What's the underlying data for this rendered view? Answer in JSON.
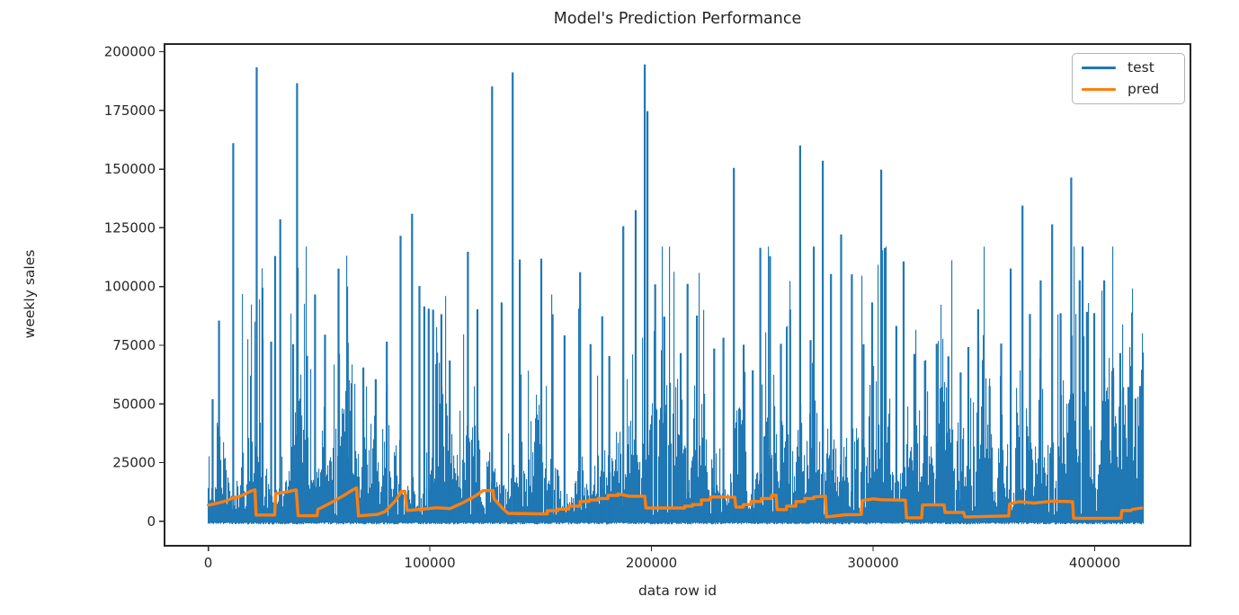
{
  "figure": {
    "title": "Model's Prediction Performance"
  },
  "chart_data": {
    "type": "line",
    "title": "Model's Prediction Performance",
    "xlabel": "data row id",
    "ylabel": "weekly sales",
    "xlim": [
      -19700,
      443200
    ],
    "ylim": [
      -10400,
      203250
    ],
    "grid": false,
    "background": "#ffffff",
    "axes_color": "#262626",
    "xticks": [
      {
        "value": 0,
        "label": "0"
      },
      {
        "value": 100000,
        "label": "100000"
      },
      {
        "value": 200000,
        "label": "200000"
      },
      {
        "value": 300000,
        "label": "300000"
      },
      {
        "value": 400000,
        "label": "400000"
      }
    ],
    "yticks": [
      {
        "value": 0,
        "label": "0"
      },
      {
        "value": 25000,
        "label": "25000"
      },
      {
        "value": 50000,
        "label": "50000"
      },
      {
        "value": 75000,
        "label": "75000"
      },
      {
        "value": 100000,
        "label": "100000"
      },
      {
        "value": 125000,
        "label": "125000"
      },
      {
        "value": 150000,
        "label": "150000"
      },
      {
        "value": 175000,
        "label": "175000"
      },
      {
        "value": 200000,
        "label": "200000"
      }
    ],
    "legend": {
      "position": "upper right",
      "entries": [
        {
          "label": "test",
          "color": "#1f77b4"
        },
        {
          "label": "pred",
          "color": "#ff7f0e"
        }
      ]
    },
    "series": [
      {
        "name": "test",
        "color": "#1f77b4",
        "style": "dense-noisy-spikes",
        "x_range": [
          0,
          422000
        ],
        "y_range": [
          -1300,
          194600
        ],
        "description": "~422000 noisy weekly-sales observations forming a dense blue texture from 0 up to 25000-90000 with tall isolated spikes",
        "noise": {
          "seed": 1337,
          "base_min": 3000,
          "base_amp": 66000,
          "spike_prob": 0.2,
          "streak_prob": 0.055,
          "cap": 117000
        },
        "major_peaks": [
          [
            2000,
            52000
          ],
          [
            4900,
            85500
          ],
          [
            11300,
            161000
          ],
          [
            21900,
            193400
          ],
          [
            24500,
            99500
          ],
          [
            28400,
            76500
          ],
          [
            30200,
            113000
          ],
          [
            32500,
            128600
          ],
          [
            38300,
            75500
          ],
          [
            40100,
            186600
          ],
          [
            44600,
            70500
          ],
          [
            48200,
            96600
          ],
          [
            52700,
            79500
          ],
          [
            58800,
            107600
          ],
          [
            63000,
            76000
          ],
          [
            70000,
            65500
          ],
          [
            75600,
            60500
          ],
          [
            80600,
            76500
          ],
          [
            86800,
            121600
          ],
          [
            92000,
            131000
          ],
          [
            95300,
            100200
          ],
          [
            97500,
            91500
          ],
          [
            99500,
            90600
          ],
          [
            101500,
            90100
          ],
          [
            105200,
            88200
          ],
          [
            109000,
            68500
          ],
          [
            117200,
            114800
          ],
          [
            121500,
            90300
          ],
          [
            128100,
            185200
          ],
          [
            132400,
            93200
          ],
          [
            137400,
            191200
          ],
          [
            140600,
            111500
          ],
          [
            150300,
            111800
          ],
          [
            155400,
            88200
          ],
          [
            160800,
            79200
          ],
          [
            167800,
            106100
          ],
          [
            172500,
            75500
          ],
          [
            177800,
            87300
          ],
          [
            181000,
            70400
          ],
          [
            187300,
            125700
          ],
          [
            192900,
            132500
          ],
          [
            197000,
            194600
          ],
          [
            198200,
            174700
          ],
          [
            201700,
            100900
          ],
          [
            205800,
            87200
          ],
          [
            213200,
            71600
          ],
          [
            216300,
            101100
          ],
          [
            220500,
            87600
          ],
          [
            228300,
            73600
          ],
          [
            232500,
            78200
          ],
          [
            237200,
            150500
          ],
          [
            241600,
            75200
          ],
          [
            245700,
            64300
          ],
          [
            249100,
            116500
          ],
          [
            253500,
            112900
          ],
          [
            258400,
            75600
          ],
          [
            262600,
            90200
          ],
          [
            267100,
            160100
          ],
          [
            271800,
            77200
          ],
          [
            277300,
            153600
          ],
          [
            281000,
            105300
          ],
          [
            285600,
            122200
          ],
          [
            290400,
            105200
          ],
          [
            295700,
            75400
          ],
          [
            299600,
            93200
          ],
          [
            303700,
            149800
          ],
          [
            305300,
            116400
          ],
          [
            310500,
            83200
          ],
          [
            313800,
            110700
          ],
          [
            318600,
            71300
          ],
          [
            323400,
            68400
          ],
          [
            328700,
            75600
          ],
          [
            334000,
            70300
          ],
          [
            339500,
            63400
          ],
          [
            343000,
            74200
          ],
          [
            347400,
            90300
          ],
          [
            352600,
            57600
          ],
          [
            357800,
            75700
          ],
          [
            362100,
            107700
          ],
          [
            367400,
            134500
          ],
          [
            370800,
            88300
          ],
          [
            375600,
            102600
          ],
          [
            380800,
            126500
          ],
          [
            384600,
            88600
          ],
          [
            389400,
            146400
          ],
          [
            393200,
            102700
          ],
          [
            396500,
            89200
          ],
          [
            399800,
            88700
          ],
          [
            404300,
            102600
          ],
          [
            408300,
            65300
          ],
          [
            411500,
            71600
          ],
          [
            415200,
            57200
          ],
          [
            418400,
            52300
          ],
          [
            420500,
            57600
          ]
        ]
      },
      {
        "name": "pred",
        "color": "#ff7f0e",
        "style": "step-line",
        "points": [
          [
            0,
            6900
          ],
          [
            3600,
            7600
          ],
          [
            7700,
            8600
          ],
          [
            10900,
            9800
          ],
          [
            14200,
            10600
          ],
          [
            16600,
            11600
          ],
          [
            19100,
            12800
          ],
          [
            21100,
            13400
          ],
          [
            21600,
            2700
          ],
          [
            30000,
            2700
          ],
          [
            30400,
            11800
          ],
          [
            36000,
            12600
          ],
          [
            39700,
            13400
          ],
          [
            40600,
            2400
          ],
          [
            49100,
            2400
          ],
          [
            49500,
            5100
          ],
          [
            53100,
            6800
          ],
          [
            57200,
            8900
          ],
          [
            61200,
            11000
          ],
          [
            64500,
            13000
          ],
          [
            66900,
            14300
          ],
          [
            67800,
            2300
          ],
          [
            76600,
            3000
          ],
          [
            79900,
            4200
          ],
          [
            84700,
            9000
          ],
          [
            87200,
            12800
          ],
          [
            88800,
            12800
          ],
          [
            89700,
            4600
          ],
          [
            96900,
            5200
          ],
          [
            103000,
            5800
          ],
          [
            109100,
            5400
          ],
          [
            115100,
            8000
          ],
          [
            120000,
            10500
          ],
          [
            124100,
            13100
          ],
          [
            128500,
            13100
          ],
          [
            129000,
            9600
          ],
          [
            132600,
            5800
          ],
          [
            135400,
            3400
          ],
          [
            148400,
            3200
          ],
          [
            157700,
            5400
          ],
          [
            167800,
            8200
          ],
          [
            175900,
            10000
          ],
          [
            184900,
            11500
          ],
          [
            190100,
            10700
          ],
          [
            197000,
            10700
          ],
          [
            197500,
            5700
          ],
          [
            211600,
            5700
          ],
          [
            218500,
            7400
          ],
          [
            226600,
            10300
          ],
          [
            237600,
            10300
          ],
          [
            238100,
            6100
          ],
          [
            244900,
            8200
          ],
          [
            254200,
            11100
          ],
          [
            256200,
            11100
          ],
          [
            256700,
            5000
          ],
          [
            265200,
            8300
          ],
          [
            273200,
            10700
          ],
          [
            278500,
            10700
          ],
          [
            279000,
            1900
          ],
          [
            287400,
            2800
          ],
          [
            294700,
            2900
          ],
          [
            295100,
            8800
          ],
          [
            300000,
            9600
          ],
          [
            303600,
            9200
          ],
          [
            314600,
            9000
          ],
          [
            315100,
            1500
          ],
          [
            321900,
            1500
          ],
          [
            322300,
            7000
          ],
          [
            332000,
            7000
          ],
          [
            332500,
            3800
          ],
          [
            340900,
            3800
          ],
          [
            341400,
            1900
          ],
          [
            361200,
            2300
          ],
          [
            361600,
            7400
          ],
          [
            366000,
            8400
          ],
          [
            372600,
            7800
          ],
          [
            380700,
            8600
          ],
          [
            390000,
            8400
          ],
          [
            390500,
            1300
          ],
          [
            411900,
            1300
          ],
          [
            412300,
            4600
          ],
          [
            416300,
            4600
          ],
          [
            417000,
            5100
          ],
          [
            421200,
            5700
          ]
        ]
      }
    ]
  }
}
